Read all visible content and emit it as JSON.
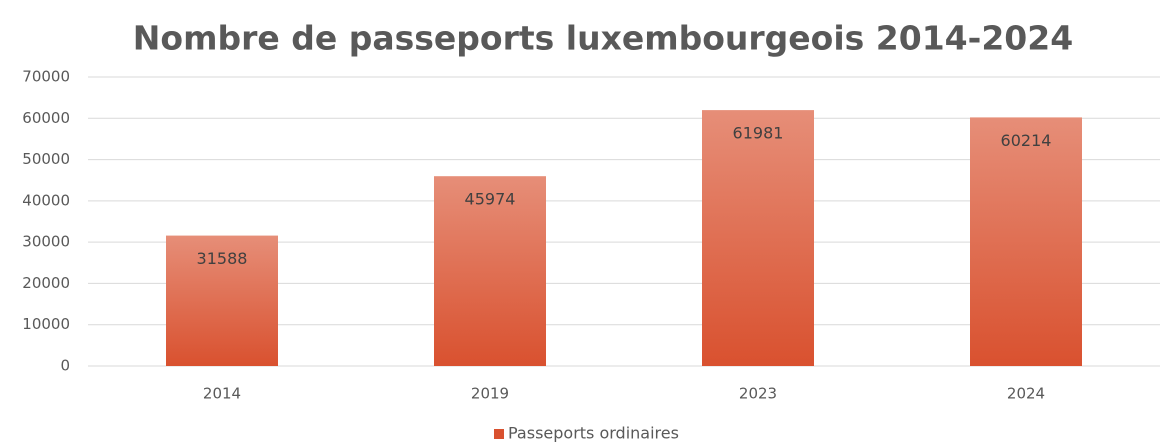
{
  "chart_data": {
    "type": "bar",
    "title": "Nombre de passeports luxembourgeois 2014-2024",
    "categories": [
      "2014",
      "2019",
      "2023",
      "2024"
    ],
    "series": [
      {
        "name": "Passeports ordinaires",
        "color": "#d9512f",
        "values": [
          31588,
          45974,
          61981,
          60214
        ]
      }
    ],
    "ylim": [
      0,
      70000
    ],
    "yticks": [
      0,
      10000,
      20000,
      30000,
      40000,
      50000,
      60000,
      70000
    ],
    "grid": true,
    "legend": "bottom",
    "data_labels": true
  }
}
